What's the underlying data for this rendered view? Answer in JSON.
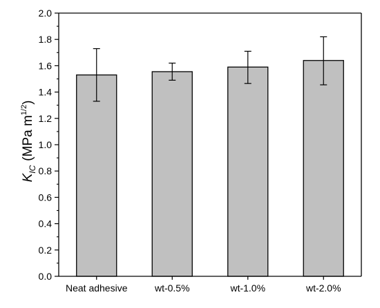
{
  "chart_data": {
    "type": "bar",
    "categories": [
      "Neat adhesive",
      "wt-0.5%",
      "wt-1.0%",
      "wt-2.0%"
    ],
    "values": [
      1.53,
      1.555,
      1.59,
      1.64
    ],
    "errors": [
      {
        "low": 1.33,
        "high": 1.73
      },
      {
        "low": 1.49,
        "high": 1.62
      },
      {
        "low": 1.465,
        "high": 1.71
      },
      {
        "low": 1.455,
        "high": 1.82
      }
    ],
    "title": "",
    "xlabel": "",
    "ylabel": {
      "symbol": "K",
      "subscript": "IC",
      "unit": "(MPa m",
      "exponent": "1/2",
      "close": ")"
    },
    "ylim": [
      0.0,
      2.0
    ],
    "yticks": [
      "0.0",
      "0.2",
      "0.4",
      "0.6",
      "0.8",
      "1.0",
      "1.2",
      "1.4",
      "1.6",
      "1.8",
      "2.0"
    ],
    "grid": false,
    "colors": {
      "bar_fill": "#c0c0c0",
      "bar_stroke": "#000000",
      "axis": "#000000"
    }
  }
}
